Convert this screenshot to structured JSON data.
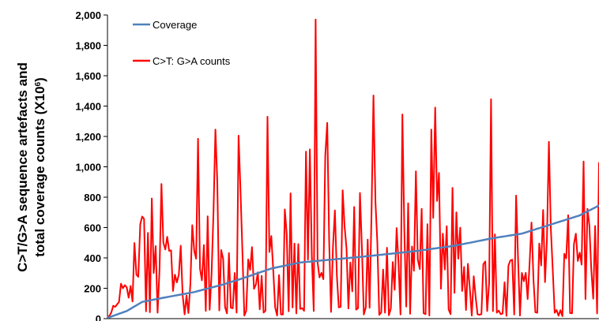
{
  "chart_data": {
    "type": "line",
    "ylabel_line1": "C>T/G>A sequence artefacts  and",
    "ylabel_line2": "total coverage counts (X10",
    "ylabel_sup": "6",
    "ylabel_close": ")",
    "ylim": [
      0,
      2000
    ],
    "yticks": [
      "0",
      "200",
      "400",
      "600",
      "800",
      "1,000",
      "1,200",
      "1,400",
      "1,600",
      "1,800",
      "2,000"
    ],
    "ytick_values": [
      0,
      200,
      400,
      600,
      800,
      1000,
      1200,
      1400,
      1600,
      1800,
      2000
    ],
    "x_count": 256,
    "legend_position": "top-left",
    "series": [
      {
        "name": "Coverage",
        "color": "#4f81bd",
        "anchors": [
          [
            0,
            5
          ],
          [
            10,
            50
          ],
          [
            18,
            110
          ],
          [
            30,
            140
          ],
          [
            45,
            175
          ],
          [
            60,
            225
          ],
          [
            70,
            265
          ],
          [
            85,
            330
          ],
          [
            100,
            370
          ],
          [
            130,
            405
          ],
          [
            160,
            445
          ],
          [
            180,
            480
          ],
          [
            200,
            530
          ],
          [
            215,
            560
          ],
          [
            230,
            620
          ],
          [
            245,
            680
          ],
          [
            255,
            745
          ]
        ]
      },
      {
        "name": "C>T: G>A counts",
        "color": "#ff0000",
        "peaks": [
          [
            49,
            1185
          ],
          [
            58,
            1245
          ],
          [
            71,
            1205
          ],
          [
            87,
            1330
          ],
          [
            107,
            1100
          ],
          [
            110,
            1115
          ],
          [
            113,
            1970
          ],
          [
            119,
            1290
          ],
          [
            144,
            1470
          ],
          [
            160,
            1345
          ],
          [
            175,
            1245
          ],
          [
            177,
            1390
          ],
          [
            208,
            1445
          ],
          [
            239,
            1165
          ],
          [
            258,
            1035
          ],
          [
            266,
            1030
          ]
        ]
      }
    ]
  }
}
